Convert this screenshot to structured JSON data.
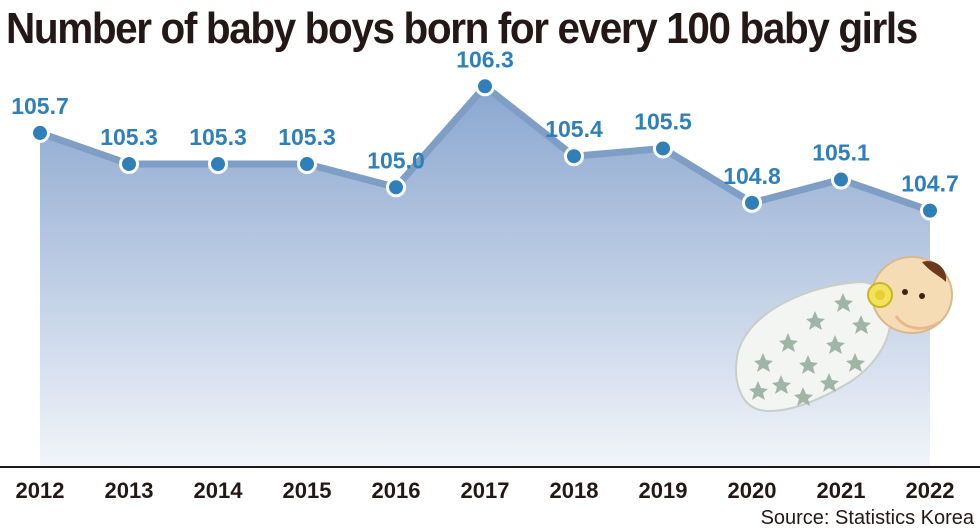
{
  "chart_data": {
    "type": "area",
    "title": "Number of baby boys born for every 100 baby girls",
    "categories": [
      "2012",
      "2013",
      "2014",
      "2015",
      "2016",
      "2017",
      "2018",
      "2019",
      "2020",
      "2021",
      "2022"
    ],
    "values": [
      105.7,
      105.3,
      105.3,
      105.3,
      105.0,
      106.3,
      105.4,
      105.5,
      104.8,
      105.1,
      104.7
    ],
    "value_labels": [
      "105.7",
      "105.3",
      "105.3",
      "105.3",
      "105.0",
      "106.3",
      "105.4",
      "105.5",
      "104.8",
      "105.1",
      "104.7"
    ],
    "xlabel": "",
    "ylabel": "",
    "ylim": [
      101.4,
      106.6
    ],
    "grid": false,
    "source": "Source: Statistics Korea"
  },
  "colors": {
    "line": "#7f9ec6",
    "area_top": "#8aa6cf",
    "area_bottom": "#f2f5fa",
    "marker": "#2f7fb8",
    "label": "#2f7fb8",
    "text": "#231815"
  },
  "illustration": "swaddled-baby-icon"
}
